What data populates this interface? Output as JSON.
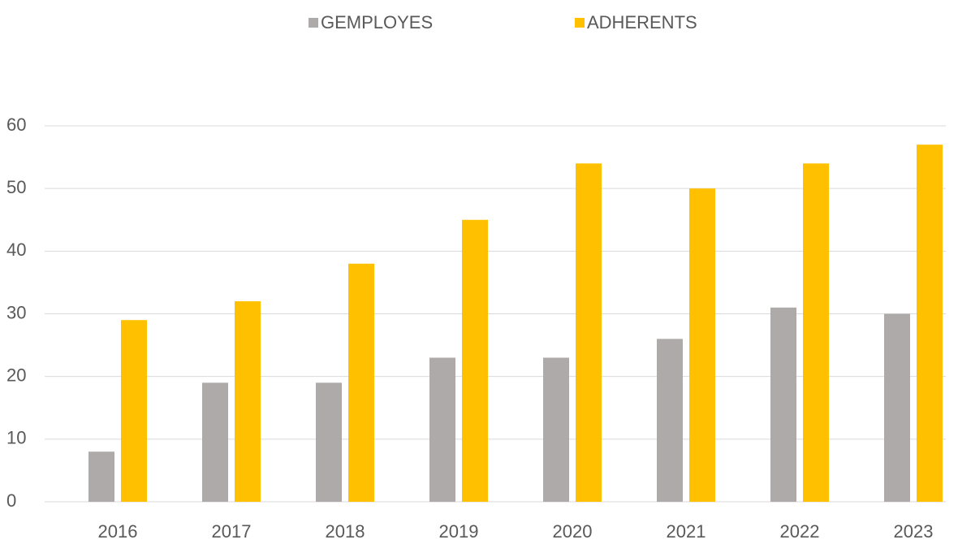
{
  "chart_data": {
    "type": "bar",
    "categories": [
      "2016",
      "2017",
      "2018",
      "2019",
      "2020",
      "2021",
      "2022",
      "2023"
    ],
    "series": [
      {
        "name": "GEMPLOYES",
        "color": "#aeaaaa",
        "values": [
          8,
          19,
          19,
          23,
          23,
          26,
          31,
          30
        ]
      },
      {
        "name": "ADHERENTS",
        "color": "#ffc000",
        "values": [
          29,
          32,
          38,
          45,
          54,
          50,
          54,
          57
        ]
      }
    ],
    "ylim": [
      0,
      60
    ],
    "yticks": [
      0,
      10,
      20,
      30,
      40,
      50,
      60
    ],
    "grid": true,
    "legend": "top"
  }
}
